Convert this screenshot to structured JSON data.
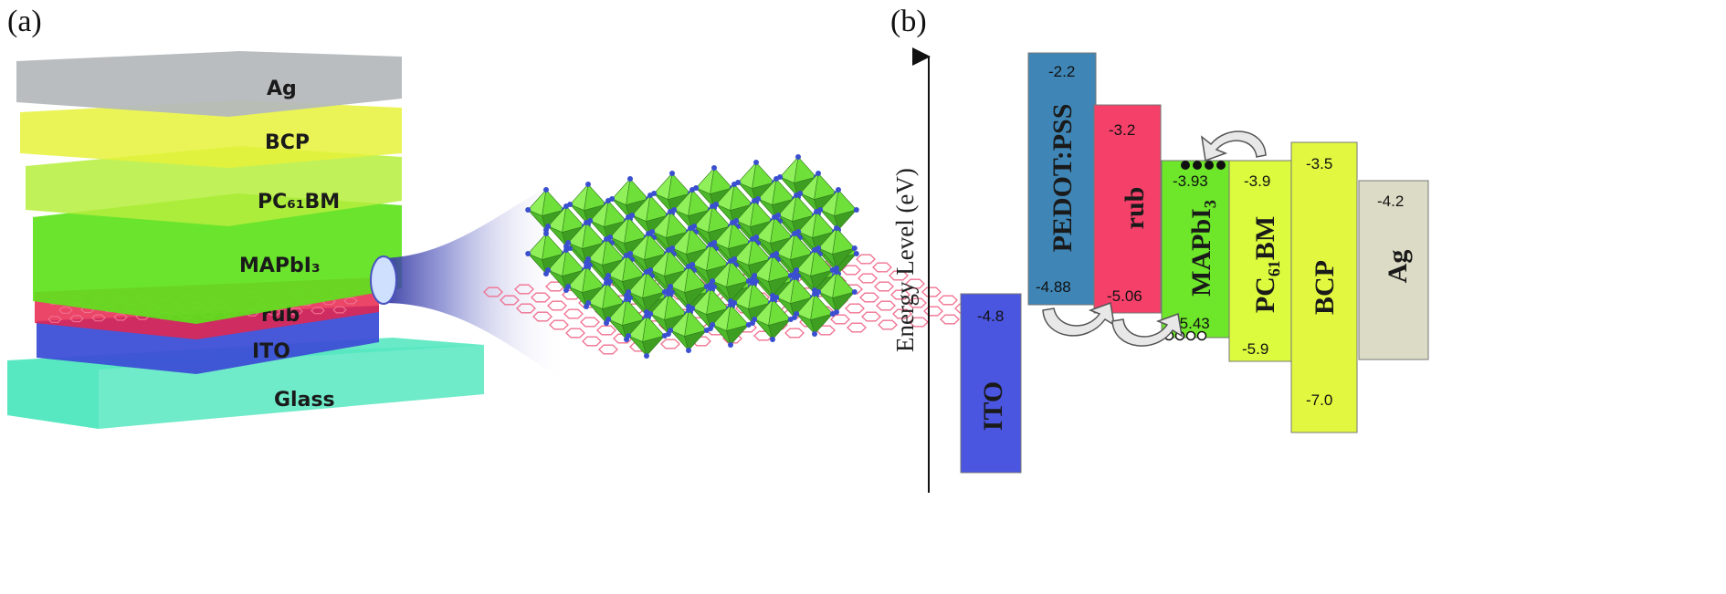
{
  "panel_a": {
    "label": "(a)",
    "layers": [
      "Ag",
      "BCP",
      "PC₆₁BM",
      "MAPbI₃",
      "rub",
      "ITO",
      "Glass"
    ],
    "colors": {
      "ag": "#b5b9bc",
      "bcp": "#e6f23a",
      "pcbm": "#b6ee3c",
      "mapbi3": "#5ee21c",
      "rub": "#e8244c",
      "ito": "#3d4fd6",
      "glass": "#56e8bf",
      "octahedron": "#6fe03a",
      "hexagon": "#f07090",
      "atom": "#3a4fd0"
    }
  },
  "panel_b": {
    "label": "(b)",
    "axis_label": "Energy Level (eV)",
    "bands": [
      {
        "name": "ITO",
        "top": "-4.8",
        "bottom": "",
        "color": "#4a55e0"
      },
      {
        "name": "PEDOT:PSS",
        "top": "-2.2",
        "bottom": "-4.88",
        "color": "#3f86b6"
      },
      {
        "name": "rub",
        "top": "-3.2",
        "bottom": "-5.06",
        "color": "#f5406a"
      },
      {
        "name": "MAPbI₃",
        "top": "-3.93",
        "bottom": "-5.43",
        "color": "#6ee62a"
      },
      {
        "name": "PC₆₁BM",
        "top": "-3.9",
        "bottom": "-5.9",
        "color": "#dcfa3e"
      },
      {
        "name": "BCP",
        "top": "-3.5",
        "bottom": "-7.0",
        "color": "#e2f840"
      },
      {
        "name": "Ag",
        "top": "-4.2",
        "bottom": "",
        "color": "#dcdcc6"
      }
    ]
  }
}
